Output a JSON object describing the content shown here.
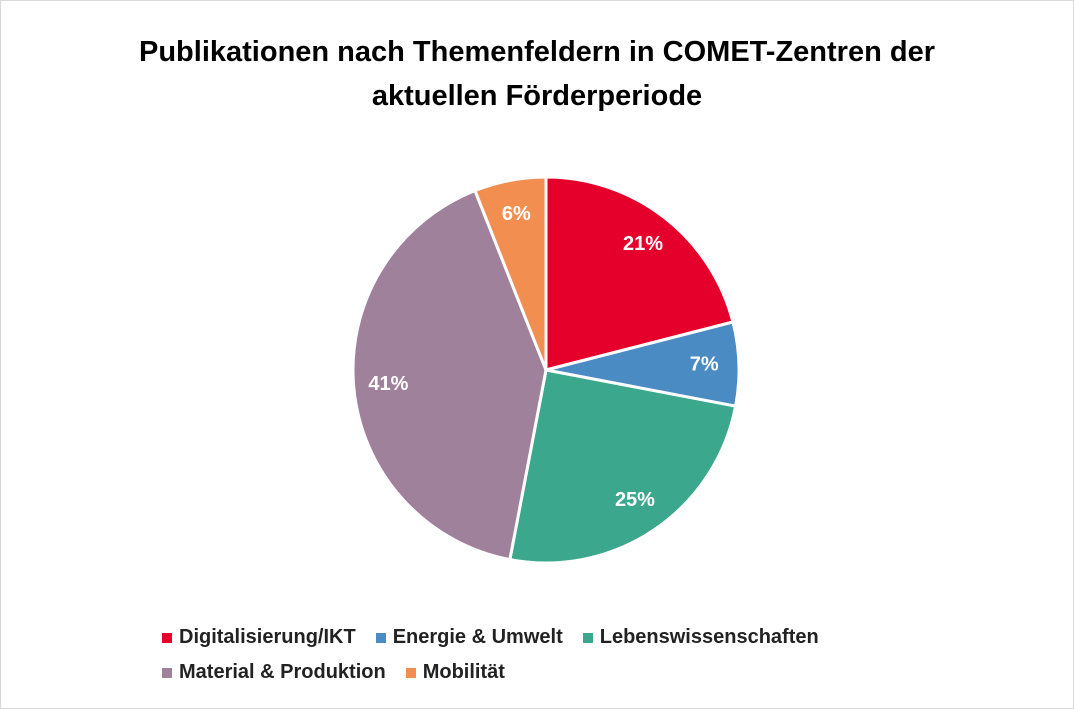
{
  "chart_data": {
    "type": "pie",
    "title": "Publikationen nach Themenfeldern in COMET-Zentren der aktuellen Förderperiode",
    "categories": [
      "Digitalisierung/IKT",
      "Energie & Umwelt",
      "Lebenswissenschaften",
      "Material & Produktion",
      "Mobilität"
    ],
    "values": [
      21,
      7,
      25,
      41,
      6
    ],
    "value_labels": [
      "21%",
      "7%",
      "25%",
      "41%",
      "6%"
    ],
    "colors": [
      "#e4002b",
      "#4a8bc4",
      "#3ba78c",
      "#a0819b",
      "#f28f50"
    ],
    "legend": "bottom"
  }
}
